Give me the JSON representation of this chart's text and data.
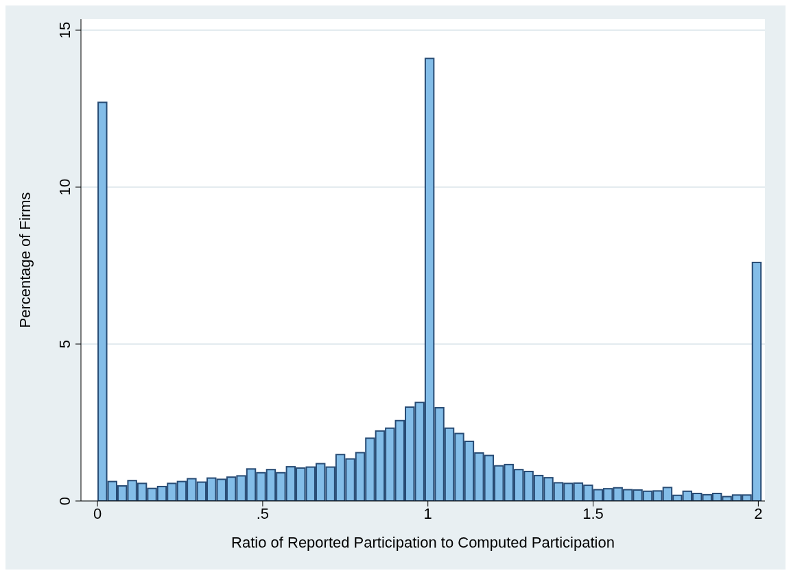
{
  "chart_data": {
    "type": "histogram",
    "xlabel": "Ratio of Reported Participation to Computed Participation",
    "ylabel": "Percentage of Firms",
    "bins": [
      0,
      0.03,
      0.06,
      0.09,
      0.12,
      0.15,
      0.18,
      0.21,
      0.24,
      0.27,
      0.3,
      0.33,
      0.36,
      0.39,
      0.42,
      0.45,
      0.48,
      0.51,
      0.54,
      0.57,
      0.6,
      0.63,
      0.66,
      0.69,
      0.72,
      0.75,
      0.78,
      0.81,
      0.84,
      0.87,
      0.9,
      0.93,
      0.96,
      0.99,
      1.02,
      1.05,
      1.08,
      1.11,
      1.14,
      1.17,
      1.2,
      1.23,
      1.26,
      1.29,
      1.32,
      1.35,
      1.38,
      1.41,
      1.44,
      1.47,
      1.5,
      1.53,
      1.56,
      1.59,
      1.62,
      1.65,
      1.68,
      1.71,
      1.74,
      1.77,
      1.8,
      1.83,
      1.86,
      1.89,
      1.92,
      1.95,
      1.98,
      2.01
    ],
    "values": [
      12.7,
      0.62,
      0.48,
      0.65,
      0.56,
      0.4,
      0.46,
      0.56,
      0.62,
      0.71,
      0.6,
      0.73,
      0.69,
      0.76,
      0.8,
      1.02,
      0.9,
      1.0,
      0.9,
      1.09,
      1.05,
      1.08,
      1.19,
      1.08,
      1.48,
      1.34,
      1.54,
      2.0,
      2.23,
      2.32,
      2.56,
      2.99,
      3.14,
      14.1,
      2.97,
      2.32,
      2.15,
      1.9,
      1.53,
      1.45,
      1.12,
      1.16,
      1.0,
      0.94,
      0.81,
      0.74,
      0.58,
      0.56,
      0.57,
      0.5,
      0.36,
      0.39,
      0.42,
      0.36,
      0.35,
      0.31,
      0.32,
      0.43,
      0.18,
      0.31,
      0.24,
      0.2,
      0.24,
      0.14,
      0.19,
      0.19,
      7.6
    ],
    "color": "#83bde8",
    "xlim": [
      -0.05,
      2.02
    ],
    "xticks": [
      0,
      {
        "value": 0.5,
        "label": ".5"
      },
      1,
      1.5,
      2
    ],
    "ylim": [
      0,
      15.35
    ],
    "yticks": [
      0,
      5,
      10,
      15
    ],
    "grid": "y"
  }
}
